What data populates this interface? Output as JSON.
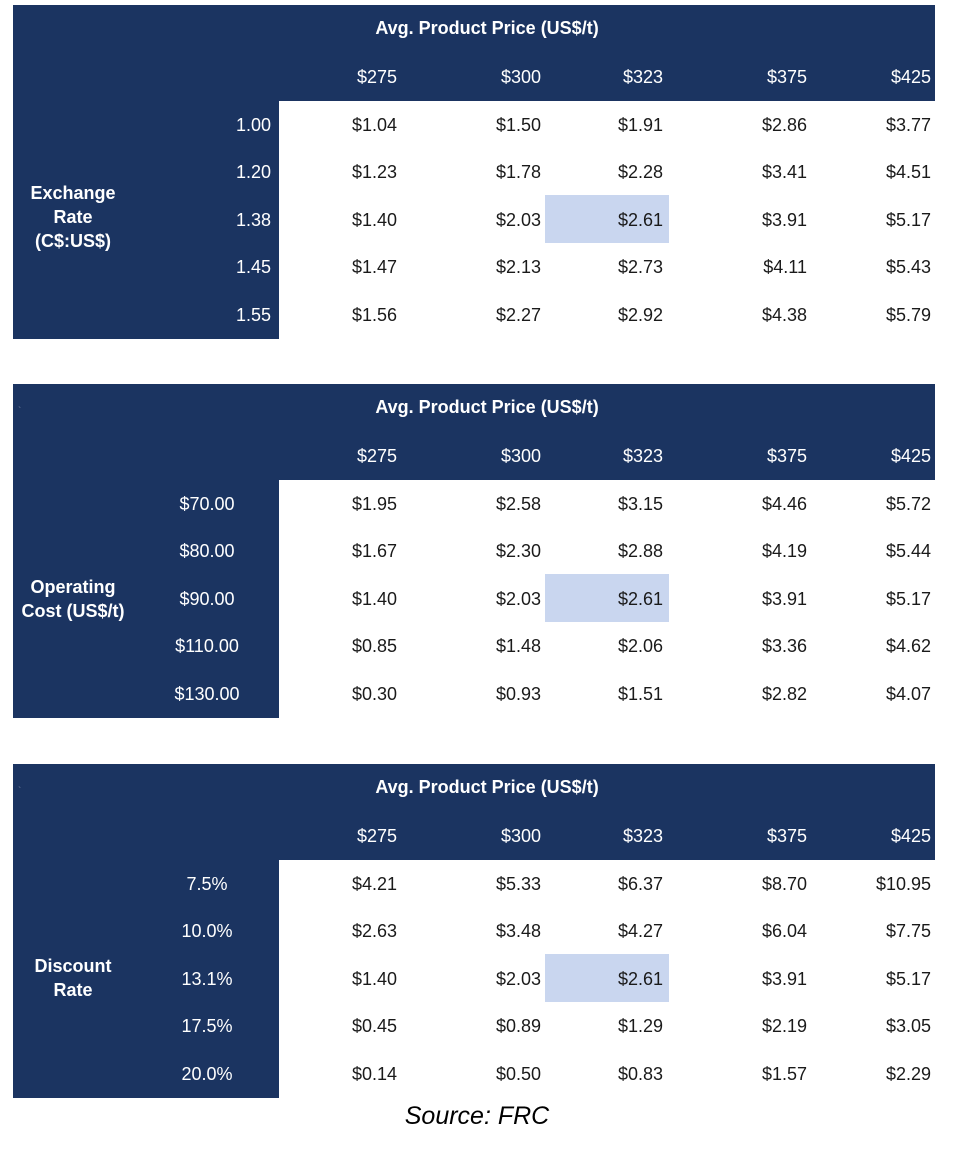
{
  "columns": [
    "$275",
    "$300",
    "$323",
    "$375",
    "$425"
  ],
  "header_title": "Avg. Product Price (US$/t)",
  "tables": [
    {
      "row_title": [
        "Exchange",
        "Rate",
        "(C$:US$)"
      ],
      "row_labels": [
        "1.00",
        "1.20",
        "1.38",
        "1.45",
        "1.55"
      ],
      "dot": "",
      "values": [
        [
          "$1.04",
          "$1.50",
          "$1.91",
          "$2.86",
          "$3.77"
        ],
        [
          "$1.23",
          "$1.78",
          "$2.28",
          "$3.41",
          "$4.51"
        ],
        [
          "$1.40",
          "$2.03",
          "$2.61",
          "$3.91",
          "$5.17"
        ],
        [
          "$1.47",
          "$2.13",
          "$2.73",
          "$4.11",
          "$5.43"
        ],
        [
          "$1.56",
          "$2.27",
          "$2.92",
          "$4.38",
          "$5.79"
        ]
      ]
    },
    {
      "row_title": [
        "Operating",
        "Cost (US$/t)"
      ],
      "row_labels": [
        "$70.00",
        "$80.00",
        "$90.00",
        "$110.00",
        "$130.00"
      ],
      "dot": "`",
      "values": [
        [
          "$1.95",
          "$2.58",
          "$3.15",
          "$4.46",
          "$5.72"
        ],
        [
          "$1.67",
          "$2.30",
          "$2.88",
          "$4.19",
          "$5.44"
        ],
        [
          "$1.40",
          "$2.03",
          "$2.61",
          "$3.91",
          "$5.17"
        ],
        [
          "$0.85",
          "$1.48",
          "$2.06",
          "$3.36",
          "$4.62"
        ],
        [
          "$0.30",
          "$0.93",
          "$1.51",
          "$2.82",
          "$4.07"
        ]
      ]
    },
    {
      "row_title": [
        "Discount",
        "Rate"
      ],
      "row_labels": [
        "7.5%",
        "10.0%",
        "13.1%",
        "17.5%",
        "20.0%"
      ],
      "dot": "`",
      "values": [
        [
          "$4.21",
          "$5.33",
          "$6.37",
          "$8.70",
          "$10.95"
        ],
        [
          "$2.63",
          "$3.48",
          "$4.27",
          "$6.04",
          "$7.75"
        ],
        [
          "$1.40",
          "$2.03",
          "$2.61",
          "$3.91",
          "$5.17"
        ],
        [
          "$0.45",
          "$0.89",
          "$1.29",
          "$2.19",
          "$3.05"
        ],
        [
          "$0.14",
          "$0.50",
          "$0.83",
          "$1.57",
          "$2.29"
        ]
      ]
    }
  ],
  "base_case": {
    "row": 2,
    "col": 2
  },
  "source": "Source: FRC",
  "colors": {
    "navy": "#1b3461",
    "highlight": "#c9d6ef",
    "text_on_navy": "#ffffff",
    "text": "#1a1a1a"
  }
}
